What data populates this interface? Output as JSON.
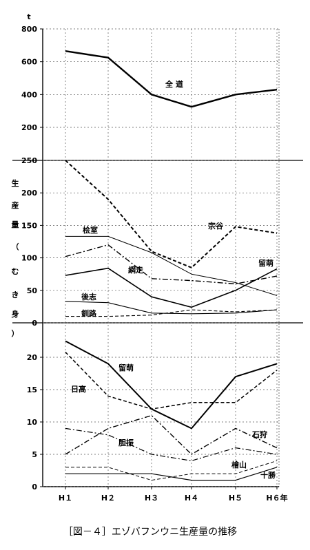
{
  "caption": "［図－４］エゾバフンウニ生産量の推移",
  "chart_data": [
    {
      "type": "line",
      "panel": "top",
      "x": [
        "H１",
        "H２",
        "H３",
        "H４",
        "H５",
        "H６年"
      ],
      "unit": "t",
      "ylim": [
        200,
        800
      ],
      "yticks": [
        "800",
        "600",
        "400",
        "200"
      ],
      "grid": true,
      "series": [
        {
          "name": "全 道",
          "style": "solid",
          "width": 2.4,
          "values": [
            665,
            625,
            400,
            325,
            400,
            430
          ]
        }
      ]
    },
    {
      "type": "line",
      "panel": "middle",
      "x": [
        "H１",
        "H２",
        "H３",
        "H４",
        "H５",
        "H６年"
      ],
      "ylabel": "生産量（むき身）",
      "ylim": [
        0,
        250
      ],
      "yticks": [
        "250",
        "200",
        "150",
        "100",
        "50",
        "0"
      ],
      "grid": true,
      "series": [
        {
          "name": "宗谷",
          "style": "dashed",
          "width": 2,
          "values": [
            250,
            190,
            110,
            85,
            148,
            138
          ]
        },
        {
          "name": "桧室",
          "style": "thin",
          "width": 1,
          "values": [
            133,
            133,
            108,
            75,
            62,
            42
          ]
        },
        {
          "name": "網走",
          "style": "dashdot",
          "width": 1.4,
          "values": [
            102,
            120,
            68,
            65,
            60,
            72
          ]
        },
        {
          "name": "留萌",
          "style": "solid",
          "width": 1.6,
          "values": [
            73,
            84,
            40,
            24,
            50,
            83
          ]
        },
        {
          "name": "後志",
          "style": "solid",
          "width": 1.1,
          "values": [
            33,
            31,
            15,
            14,
            15,
            20
          ]
        },
        {
          "name": "釧路",
          "style": "dashed",
          "width": 1.1,
          "values": [
            10,
            10,
            12,
            20,
            17,
            20
          ]
        }
      ]
    },
    {
      "type": "line",
      "panel": "bottom",
      "x": [
        "H１",
        "H２",
        "H３",
        "H４",
        "H５",
        "H６年"
      ],
      "ylim": [
        0,
        25
      ],
      "yticks": [
        "20",
        "15",
        "10",
        "5",
        "0"
      ],
      "grid": true,
      "series": [
        {
          "name": "留萌",
          "style": "solid",
          "width": 2,
          "values": [
            22.5,
            19,
            12,
            9,
            17,
            19
          ]
        },
        {
          "name": "日高",
          "style": "dashed",
          "width": 1.5,
          "values": [
            20.8,
            14,
            12,
            13,
            13,
            18
          ]
        },
        {
          "name": "石狩",
          "style": "dashdot",
          "width": 1.4,
          "values": [
            5,
            9,
            11,
            5,
            9,
            6
          ]
        },
        {
          "name": "胆振",
          "style": "dashdot",
          "width": 1.2,
          "values": [
            9,
            8,
            5,
            4,
            6,
            5
          ]
        },
        {
          "name": "檜山",
          "style": "dashed",
          "width": 1,
          "values": [
            3,
            3,
            1,
            2,
            2,
            4
          ]
        },
        {
          "name": "十勝",
          "style": "solid",
          "width": 1.2,
          "values": [
            2,
            2,
            2,
            1,
            1,
            3
          ]
        }
      ]
    }
  ],
  "labels_top": [
    "全 道"
  ],
  "labels_mid": [
    "宗谷",
    "桧室",
    "網走",
    "留萌",
    "後志",
    "釧路"
  ],
  "labels_bot": [
    "留萌",
    "日高",
    "石狩",
    "胆振",
    "檜山",
    "十勝"
  ],
  "colors": {
    "ink": "#000000",
    "grid": "#555555",
    "background": "#ffffff"
  }
}
